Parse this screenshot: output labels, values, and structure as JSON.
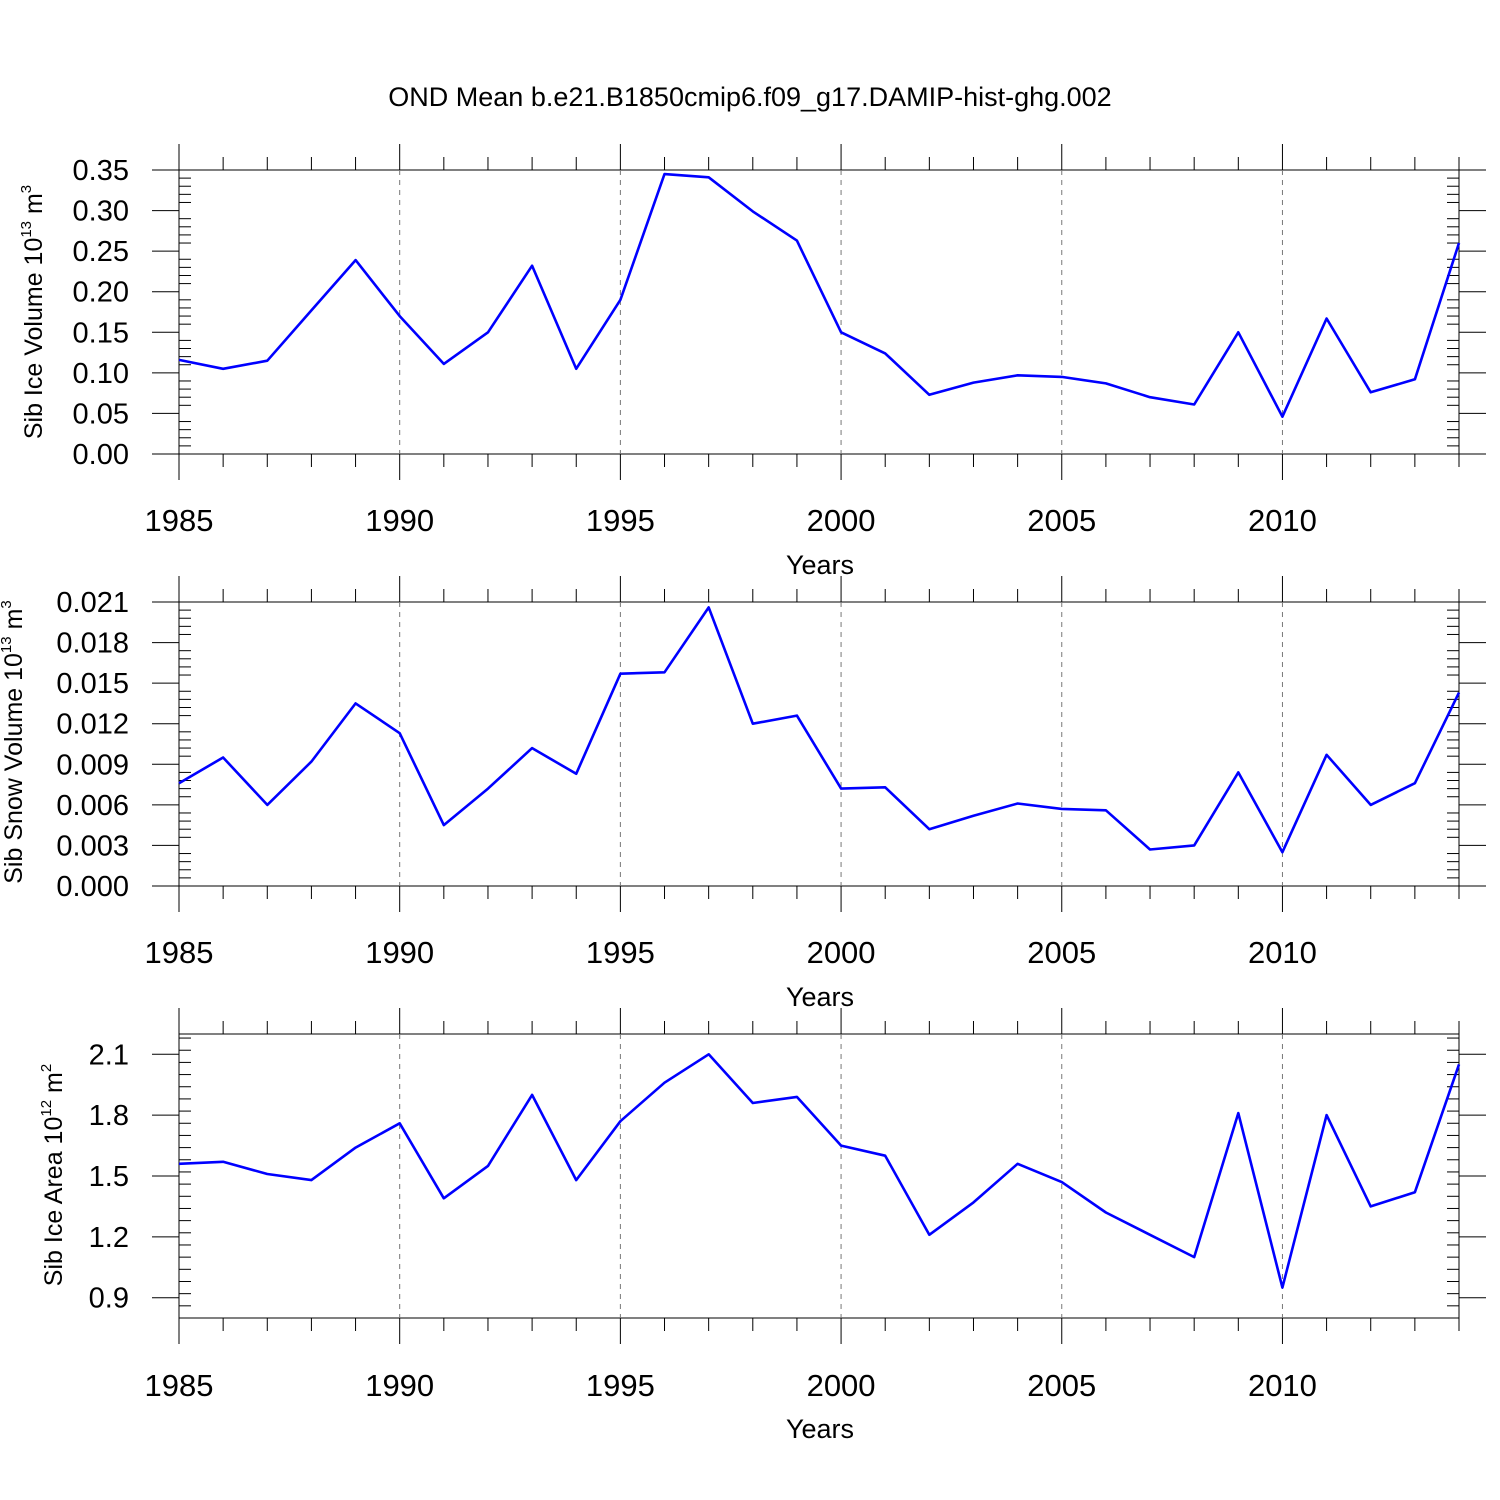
{
  "title": "OND Mean b.e21.B1850cmip6.f09_g17.DAMIP-hist-ghg.002",
  "line_color": "#0000ff",
  "chart_data": [
    {
      "type": "line",
      "xlabel": "Years",
      "ylabel": {
        "prefix": "Sib Ice Volume 10",
        "exp": "13",
        "unit": " m",
        "unit_exp": "3"
      },
      "xlim": [
        1985,
        2014
      ],
      "ylim": [
        0,
        0.35
      ],
      "xticks": [
        1985,
        1990,
        1995,
        2000,
        2005,
        2010
      ],
      "xtick_labels": [
        "1985",
        "1990",
        "1995",
        "2000",
        "2005",
        "2010"
      ],
      "yticks": [
        0,
        0.05,
        0.1,
        0.15,
        0.2,
        0.25,
        0.3,
        0.35
      ],
      "ytick_labels": [
        "0.00",
        "0.05",
        "0.10",
        "0.15",
        "0.20",
        "0.25",
        "0.30",
        "0.35"
      ],
      "grid": "vertical dashed at major x ticks",
      "x": [
        1985,
        1986,
        1987,
        1988,
        1989,
        1990,
        1991,
        1992,
        1993,
        1994,
        1995,
        1996,
        1997,
        1998,
        1999,
        2000,
        2001,
        2002,
        2003,
        2004,
        2005,
        2006,
        2007,
        2008,
        2009,
        2010,
        2011,
        2012,
        2013,
        2014
      ],
      "values": [
        0.116,
        0.105,
        0.115,
        0.177,
        0.239,
        0.17,
        0.111,
        0.15,
        0.232,
        0.105,
        0.19,
        0.345,
        0.341,
        0.299,
        0.263,
        0.15,
        0.124,
        0.073,
        0.088,
        0.097,
        0.095,
        0.087,
        0.07,
        0.061,
        0.15,
        0.046,
        0.167,
        0.076,
        0.092,
        0.26
      ]
    },
    {
      "type": "line",
      "xlabel": "Years",
      "ylabel": {
        "prefix": "Sib Snow Volume 10",
        "exp": "13",
        "unit": " m",
        "unit_exp": "3"
      },
      "xlim": [
        1985,
        2014
      ],
      "ylim": [
        0,
        0.021
      ],
      "xticks": [
        1985,
        1990,
        1995,
        2000,
        2005,
        2010
      ],
      "xtick_labels": [
        "1985",
        "1990",
        "1995",
        "2000",
        "2005",
        "2010"
      ],
      "yticks": [
        0,
        0.003,
        0.006,
        0.009,
        0.012,
        0.015,
        0.018,
        0.021
      ],
      "ytick_labels": [
        "0.000",
        "0.003",
        "0.006",
        "0.009",
        "0.012",
        "0.015",
        "0.018",
        "0.021"
      ],
      "grid": "vertical dashed at major x ticks",
      "x": [
        1985,
        1986,
        1987,
        1988,
        1989,
        1990,
        1991,
        1992,
        1993,
        1994,
        1995,
        1996,
        1997,
        1998,
        1999,
        2000,
        2001,
        2002,
        2003,
        2004,
        2005,
        2006,
        2007,
        2008,
        2009,
        2010,
        2011,
        2012,
        2013,
        2014
      ],
      "values": [
        0.0076,
        0.0095,
        0.006,
        0.0092,
        0.0135,
        0.0113,
        0.0045,
        0.0072,
        0.0102,
        0.0083,
        0.0157,
        0.0158,
        0.0206,
        0.012,
        0.0126,
        0.0072,
        0.0073,
        0.0042,
        0.0052,
        0.0061,
        0.0057,
        0.0056,
        0.0027,
        0.003,
        0.0084,
        0.0025,
        0.0097,
        0.006,
        0.0076,
        0.0143
      ]
    },
    {
      "type": "line",
      "xlabel": "Years",
      "ylabel": {
        "prefix": "Sib Ice Area 10",
        "exp": "12",
        "unit": " m",
        "unit_exp": "2"
      },
      "xlim": [
        1985,
        2014
      ],
      "ylim": [
        0.8,
        2.2
      ],
      "xticks": [
        1985,
        1990,
        1995,
        2000,
        2005,
        2010
      ],
      "xtick_labels": [
        "1985",
        "1990",
        "1995",
        "2000",
        "2005",
        "2010"
      ],
      "yticks": [
        0.9,
        1.2,
        1.5,
        1.8,
        2.1
      ],
      "ytick_labels": [
        "0.9",
        "1.2",
        "1.5",
        "1.8",
        "2.1"
      ],
      "grid": "vertical dashed at major x ticks",
      "x": [
        1985,
        1986,
        1987,
        1988,
        1989,
        1990,
        1991,
        1992,
        1993,
        1994,
        1995,
        1996,
        1997,
        1998,
        1999,
        2000,
        2001,
        2002,
        2003,
        2004,
        2005,
        2006,
        2007,
        2008,
        2009,
        2010,
        2011,
        2012,
        2013,
        2014
      ],
      "values": [
        1.56,
        1.57,
        1.51,
        1.48,
        1.64,
        1.76,
        1.39,
        1.55,
        1.9,
        1.48,
        1.77,
        1.96,
        2.1,
        1.86,
        1.89,
        1.65,
        1.6,
        1.21,
        1.37,
        1.56,
        1.47,
        1.32,
        1.21,
        1.1,
        1.81,
        0.95,
        1.8,
        1.35,
        1.42,
        2.05
      ]
    }
  ]
}
